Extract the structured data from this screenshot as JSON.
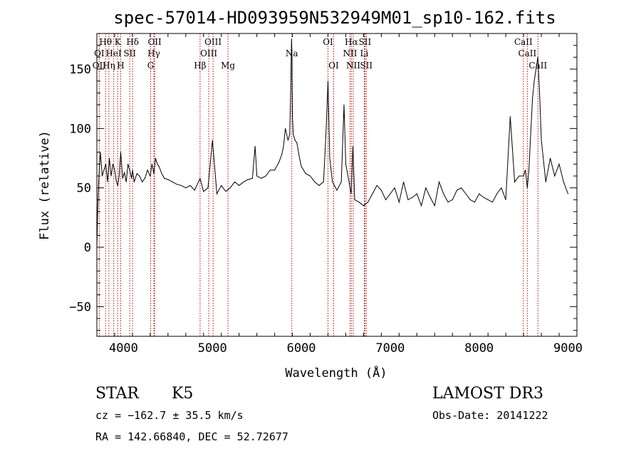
{
  "chart_data": {
    "type": "line",
    "title": "spec-57014-HD093959N532949M01_sp10-162.fits",
    "xlabel": "Wavelength (Å)",
    "ylabel": "Flux (relative)",
    "xlim": [
      3700,
      9100
    ],
    "ylim": [
      -75,
      180
    ],
    "x_ticks": [
      4000,
      5000,
      6000,
      7000,
      8000,
      9000
    ],
    "y_ticks": [
      -50,
      0,
      50,
      100,
      150
    ],
    "grid": false,
    "series": [
      {
        "x": [
          3700,
          3710,
          3720,
          3730,
          3740,
          3760,
          3780,
          3800,
          3820,
          3840,
          3860,
          3880,
          3900,
          3920,
          3935,
          3950,
          3968,
          3990,
          4010,
          4030,
          4050,
          4070,
          4090,
          4101,
          4120,
          4150,
          4180,
          4210,
          4240,
          4270,
          4300,
          4320,
          4340,
          4360,
          4380,
          4400,
          4430,
          4460,
          4500,
          4550,
          4600,
          4650,
          4700,
          4750,
          4800,
          4861,
          4900,
          4950,
          5000,
          5050,
          5100,
          5150,
          5200,
          5250,
          5300,
          5350,
          5400,
          5450,
          5480,
          5500,
          5550,
          5600,
          5650,
          5700,
          5750,
          5780,
          5800,
          5820,
          5850,
          5870,
          5880,
          5890,
          5895,
          5900,
          5910,
          5930,
          5950,
          5980,
          6000,
          6050,
          6100,
          6150,
          6200,
          6250,
          6280,
          6300,
          6320,
          6350,
          6400,
          6450,
          6480,
          6500,
          6530,
          6560,
          6563,
          6580,
          6600,
          6650,
          6700,
          6750,
          6800,
          6850,
          6900,
          6950,
          7000,
          7050,
          7100,
          7150,
          7200,
          7250,
          7300,
          7350,
          7400,
          7450,
          7500,
          7550,
          7600,
          7650,
          7700,
          7750,
          7800,
          7850,
          7900,
          7950,
          8000,
          8050,
          8100,
          8150,
          8200,
          8250,
          8300,
          8350,
          8400,
          8450,
          8500,
          8520,
          8542,
          8560,
          8600,
          8620,
          8640,
          8660,
          8680,
          8700,
          8750,
          8800,
          8850,
          8900,
          8950,
          9000
        ],
        "y": [
          0,
          33,
          55,
          68,
          80,
          60,
          65,
          70,
          55,
          75,
          60,
          70,
          65,
          55,
          52,
          60,
          80,
          58,
          63,
          55,
          70,
          65,
          58,
          65,
          55,
          62,
          60,
          55,
          58,
          65,
          60,
          70,
          62,
          75,
          70,
          68,
          62,
          58,
          57,
          55,
          53,
          52,
          50,
          52,
          48,
          58,
          47,
          50,
          90,
          45,
          52,
          47,
          50,
          55,
          52,
          55,
          57,
          58,
          85,
          60,
          58,
          60,
          65,
          65,
          72,
          78,
          85,
          100,
          90,
          95,
          130,
          175,
          160,
          110,
          95,
          90,
          88,
          75,
          68,
          62,
          60,
          55,
          52,
          55,
          100,
          140,
          75,
          55,
          48,
          55,
          120,
          70,
          58,
          45,
          50,
          85,
          40,
          38,
          35,
          38,
          45,
          52,
          48,
          40,
          45,
          50,
          38,
          55,
          40,
          42,
          45,
          35,
          50,
          42,
          35,
          55,
          45,
          38,
          40,
          48,
          50,
          45,
          40,
          38,
          45,
          42,
          40,
          38,
          45,
          50,
          40,
          110,
          55,
          60,
          60,
          65,
          50,
          65,
          125,
          140,
          150,
          160,
          130,
          90,
          55,
          75,
          60,
          70,
          55,
          45
        ]
      }
    ],
    "line_labels": [
      {
        "row": 1,
        "text": "Hθ",
        "x": 3798
      },
      {
        "row": 1,
        "text": "K",
        "x": 3934
      },
      {
        "row": 1,
        "text": "Hδ",
        "x": 4102
      },
      {
        "row": 1,
        "text": "OII",
        "x": 4350
      },
      {
        "row": 1,
        "text": "OIII",
        "x": 5007
      },
      {
        "row": 1,
        "text": "OI",
        "x": 6300
      },
      {
        "row": 1,
        "text": "Hα",
        "x": 6563
      },
      {
        "row": 1,
        "text": "SII",
        "x": 6716
      },
      {
        "row": 1,
        "text": "CaII",
        "x": 8498
      },
      {
        "row": 2,
        "text": "OI",
        "x": 3727
      },
      {
        "row": 2,
        "text": "HeI",
        "x": 3889
      },
      {
        "row": 2,
        "text": "SII",
        "x": 4070
      },
      {
        "row": 2,
        "text": "Hγ",
        "x": 4341
      },
      {
        "row": 2,
        "text": "OIII",
        "x": 4959
      },
      {
        "row": 2,
        "text": "Na",
        "x": 5893
      },
      {
        "row": 2,
        "text": "NII",
        "x": 6548
      },
      {
        "row": 2,
        "text": "Li",
        "x": 6708
      },
      {
        "row": 2,
        "text": "CaII",
        "x": 8542
      },
      {
        "row": 3,
        "text": "OII",
        "x": 3727
      },
      {
        "row": 3,
        "text": "Hη",
        "x": 3835
      },
      {
        "row": 3,
        "text": "H",
        "x": 3968
      },
      {
        "row": 3,
        "text": "G",
        "x": 4305
      },
      {
        "row": 3,
        "text": "Hβ",
        "x": 4861
      },
      {
        "row": 3,
        "text": "Mg",
        "x": 5175
      },
      {
        "row": 3,
        "text": "OI",
        "x": 6364
      },
      {
        "row": 3,
        "text": "NII",
        "x": 6584
      },
      {
        "row": 3,
        "text": "SII",
        "x": 6731
      },
      {
        "row": 3,
        "text": "CaII",
        "x": 8662
      }
    ],
    "line_markers": [
      3727,
      3798,
      3835,
      3889,
      3934,
      3968,
      4070,
      4102,
      4305,
      4341,
      4350,
      4861,
      4959,
      5007,
      5175,
      5893,
      6300,
      6364,
      6548,
      6563,
      6584,
      6708,
      6716,
      6731,
      8498,
      8542,
      8662
    ]
  },
  "info": {
    "object_class": "STAR",
    "subclass": "K5",
    "survey": "LAMOST DR3",
    "redshift_line": "cz = −162.7 ± 35.5 km/s",
    "obs_date": "Obs-Date: 20141222",
    "coords": "RA = 142.66840, DEC =  52.72677"
  },
  "colors": {
    "spectrum": "#000000",
    "line_marker": "#cc0000",
    "axes": "#000000",
    "background": "#ffffff"
  }
}
